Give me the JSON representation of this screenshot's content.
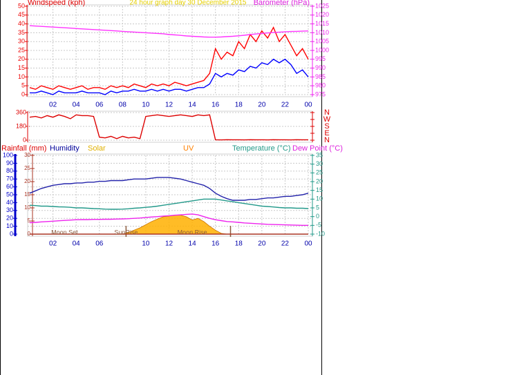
{
  "chart_data": [
    {
      "type": "line",
      "title": "24 hour graph day   30 December 2015",
      "ylabel": "Windspeed (kph)",
      "y2label": "Barometer (hPa)",
      "x": [
        0,
        0.5,
        1,
        1.5,
        2,
        2.5,
        3,
        3.5,
        4,
        4.5,
        5,
        5.5,
        6,
        6.5,
        7,
        7.5,
        8,
        8.5,
        9,
        9.5,
        10,
        10.5,
        11,
        11.5,
        12,
        12.5,
        13,
        13.5,
        14,
        14.5,
        15,
        15.5,
        16,
        16.5,
        17,
        17.5,
        18,
        18.5,
        19,
        19.5,
        20,
        20.5,
        21,
        21.5,
        22,
        22.5,
        23,
        23.5,
        24
      ],
      "xlim": [
        0,
        24
      ],
      "xticks": [
        {
          "value": 2,
          "label": "02"
        },
        {
          "value": 4,
          "label": "04"
        },
        {
          "value": 6,
          "label": "06"
        },
        {
          "value": 8,
          "label": "08"
        },
        10,
        12,
        14,
        16,
        18,
        20,
        22,
        {
          "value": 24,
          "label": "00"
        }
      ],
      "ylim": [
        0,
        50
      ],
      "yticks": [
        0,
        5,
        10,
        15,
        20,
        25,
        30,
        35,
        40,
        45,
        50
      ],
      "y2lim": [
        975,
        1025
      ],
      "y2ticks": [
        975,
        980,
        985,
        990,
        995,
        1000,
        1005,
        1010,
        1015,
        1020,
        1025
      ],
      "grid": true,
      "series": [
        {
          "color": "#ff0000",
          "values": [
            4,
            3,
            5,
            4,
            3,
            5,
            4,
            3,
            4,
            5,
            3,
            4,
            4,
            3,
            5,
            4,
            5,
            4,
            6,
            5,
            4,
            6,
            5,
            6,
            5,
            7,
            6,
            5,
            6,
            7,
            8,
            12,
            26,
            20,
            24,
            22,
            30,
            26,
            34,
            30,
            36,
            32,
            38,
            30,
            34,
            28,
            22,
            26,
            20
          ]
        },
        {
          "color": "#0000ff",
          "values": [
            1,
            1,
            2,
            1,
            0,
            2,
            1,
            1,
            1,
            2,
            1,
            1,
            1,
            0,
            2,
            1,
            2,
            2,
            3,
            2,
            2,
            3,
            2,
            3,
            2,
            3,
            3,
            2,
            3,
            4,
            4,
            6,
            12,
            10,
            12,
            11,
            14,
            13,
            16,
            15,
            18,
            17,
            20,
            18,
            20,
            17,
            12,
            14,
            10
          ]
        },
        {
          "color": "#ff33ff",
          "axis": "y2",
          "values": [
            1014,
            1013.8,
            1013.6,
            1013.4,
            1013.2,
            1013,
            1012.8,
            1012.6,
            1012.4,
            1012.2,
            1012,
            1011.8,
            1011.6,
            1011.4,
            1011.2,
            1011,
            1010.8,
            1010.6,
            1010.4,
            1010.2,
            1010,
            1009.8,
            1009.6,
            1009.4,
            1009,
            1008.8,
            1008.5,
            1008.2,
            1008,
            1007.8,
            1007.6,
            1007.5,
            1007.5,
            1007.6,
            1007.8,
            1008,
            1008.3,
            1008.6,
            1009,
            1009.3,
            1009.6,
            1009.9,
            1010.1,
            1010.3,
            1010.5,
            1010.7,
            1010.8,
            1010.9,
            1011
          ]
        }
      ]
    },
    {
      "type": "line",
      "x": [
        0,
        0.5,
        1,
        1.5,
        2,
        2.5,
        3,
        3.5,
        4,
        4.5,
        5,
        5.5,
        6,
        6.5,
        7,
        7.5,
        8,
        8.5,
        9,
        9.5,
        10,
        10.5,
        11,
        11.5,
        12,
        12.5,
        13,
        13.5,
        14,
        14.5,
        15,
        15.5,
        16,
        16.5,
        17,
        17.5,
        18,
        18.5,
        19,
        19.5,
        20,
        20.5,
        21,
        21.5,
        22,
        22.5,
        23,
        23.5,
        24
      ],
      "xlim": [
        0,
        24
      ],
      "ylim": [
        0,
        360
      ],
      "yticks": [
        0,
        180,
        360
      ],
      "y2lim": [
        0,
        360
      ],
      "y2ticks": [
        {
          "value": 0,
          "label": "N"
        },
        {
          "value": 90,
          "label": "E"
        },
        {
          "value": 180,
          "label": "S"
        },
        {
          "value": 270,
          "label": "W"
        },
        {
          "value": 360,
          "label": "N"
        }
      ],
      "grid": true,
      "series": [
        {
          "color": "#dd0000",
          "values": [
            300,
            310,
            290,
            320,
            300,
            330,
            310,
            280,
            330,
            320,
            320,
            310,
            40,
            30,
            50,
            20,
            50,
            30,
            40,
            20,
            310,
            320,
            330,
            320,
            310,
            320,
            330,
            320,
            310,
            330,
            320,
            330,
            5,
            4,
            6,
            5,
            5,
            4,
            6,
            5,
            5,
            4,
            6,
            5,
            5,
            4,
            6,
            5,
            5
          ]
        }
      ]
    },
    {
      "type": "line",
      "labels": [
        "Rainfall (mm)",
        "Humidity",
        "Solar",
        "UV",
        "Temperature (°C)",
        "Dew Point (°C)"
      ],
      "x": [
        0,
        0.5,
        1,
        1.5,
        2,
        2.5,
        3,
        3.5,
        4,
        4.5,
        5,
        5.5,
        6,
        6.5,
        7,
        7.5,
        8,
        8.5,
        9,
        9.5,
        10,
        10.5,
        11,
        11.5,
        12,
        12.5,
        13,
        13.5,
        14,
        14.5,
        15,
        15.5,
        16,
        16.5,
        17,
        17.5,
        18,
        18.5,
        19,
        19.5,
        20,
        20.5,
        21,
        21.5,
        22,
        22.5,
        23,
        23.5,
        24
      ],
      "xlim": [
        0,
        24
      ],
      "xticks": [
        {
          "value": 2,
          "label": "02"
        },
        {
          "value": 4,
          "label": "04"
        },
        {
          "value": 6,
          "label": "06"
        },
        10,
        12,
        14,
        16,
        18,
        20,
        22,
        {
          "value": 24,
          "label": "00"
        }
      ],
      "ylim": [
        0,
        100
      ],
      "yticks": [
        0,
        10,
        20,
        30,
        40,
        50,
        60,
        70,
        80,
        90,
        100
      ],
      "y2lim": [
        -10,
        35
      ],
      "y2ticks": [
        -10,
        -5,
        0,
        5,
        10,
        15,
        20,
        25,
        30,
        35
      ],
      "y3lim": [
        0,
        30
      ],
      "y3ticks": [
        0,
        5,
        10,
        15,
        20,
        25,
        30
      ],
      "grid": true,
      "annotations": [
        {
          "text": "Moon Set",
          "x": 3
        },
        {
          "text": "SunRise",
          "x": 8.3
        },
        {
          "text": "Moon Rise",
          "x": 14
        }
      ],
      "sun_lines": [
        8.3,
        17.3
      ],
      "series": [
        {
          "color": "#ffb000",
          "area": true,
          "values": [
            0,
            0,
            0,
            0,
            0,
            0,
            0,
            0,
            0,
            0,
            0,
            0,
            0,
            0,
            0,
            0,
            0,
            2,
            5,
            8,
            12,
            16,
            19,
            22,
            23,
            24,
            24,
            22,
            18,
            20,
            16,
            10,
            5,
            1,
            0,
            0,
            0,
            0,
            0,
            0,
            0,
            0,
            0,
            0,
            0,
            0,
            0,
            0,
            0
          ]
        },
        {
          "color": "#aa3322",
          "axis": "y3",
          "values": [
            0,
            0,
            0,
            0,
            0,
            0,
            0,
            0,
            0,
            0,
            0,
            0,
            0,
            0,
            0,
            0,
            0,
            0,
            0,
            0,
            0,
            0,
            0,
            0,
            0,
            0,
            0,
            0,
            0,
            0,
            0,
            0,
            0,
            0,
            0,
            0,
            0,
            0,
            0,
            0,
            0,
            0,
            0,
            0,
            0,
            0,
            0,
            0,
            0
          ]
        },
        {
          "color": "#2222aa",
          "values": [
            52,
            55,
            58,
            60,
            62,
            63,
            64,
            64,
            65,
            65,
            66,
            66,
            67,
            67,
            68,
            68,
            68,
            69,
            70,
            70,
            70,
            71,
            72,
            72,
            72,
            71,
            70,
            68,
            66,
            64,
            62,
            58,
            52,
            48,
            45,
            43,
            43,
            43,
            44,
            44,
            45,
            46,
            46,
            47,
            48,
            48,
            49,
            50,
            52
          ]
        },
        {
          "color": "#22998a",
          "axis": "y2",
          "values": [
            6.5,
            6.3,
            6,
            6,
            5.8,
            5.6,
            5.5,
            5.3,
            5,
            5,
            4.8,
            4.6,
            4.5,
            4.3,
            4.2,
            4.2,
            4.3,
            4.5,
            4.8,
            5,
            5.3,
            5.6,
            6,
            6.5,
            7,
            7.5,
            8,
            8.5,
            9,
            9.5,
            10,
            10,
            10,
            9.5,
            9,
            8.5,
            8,
            7.5,
            7,
            6.5,
            6,
            5.8,
            5.5,
            5.2,
            5,
            5,
            4.8,
            4.8,
            4.6
          ]
        },
        {
          "color": "#ee22ee",
          "axis": "y2",
          "values": [
            -3.5,
            -3.3,
            -3,
            -2.8,
            -2.6,
            -2.4,
            -2.2,
            -2,
            -1.8,
            -1.7,
            -1.7,
            -1.6,
            -1.6,
            -1.5,
            -1.5,
            -1.4,
            -1.3,
            -1.2,
            -1,
            -0.8,
            -0.5,
            -0.2,
            0,
            0.3,
            0.5,
            0.8,
            1,
            1.3,
            1.5,
            1,
            0,
            -1,
            -1.8,
            -2.3,
            -2.8,
            -3,
            -3.3,
            -3.6,
            -3.8,
            -4,
            -4.2,
            -4.4,
            -4.5,
            -4.6,
            -4.7,
            -4.8,
            -4.9,
            -5,
            -5
          ]
        }
      ]
    }
  ]
}
